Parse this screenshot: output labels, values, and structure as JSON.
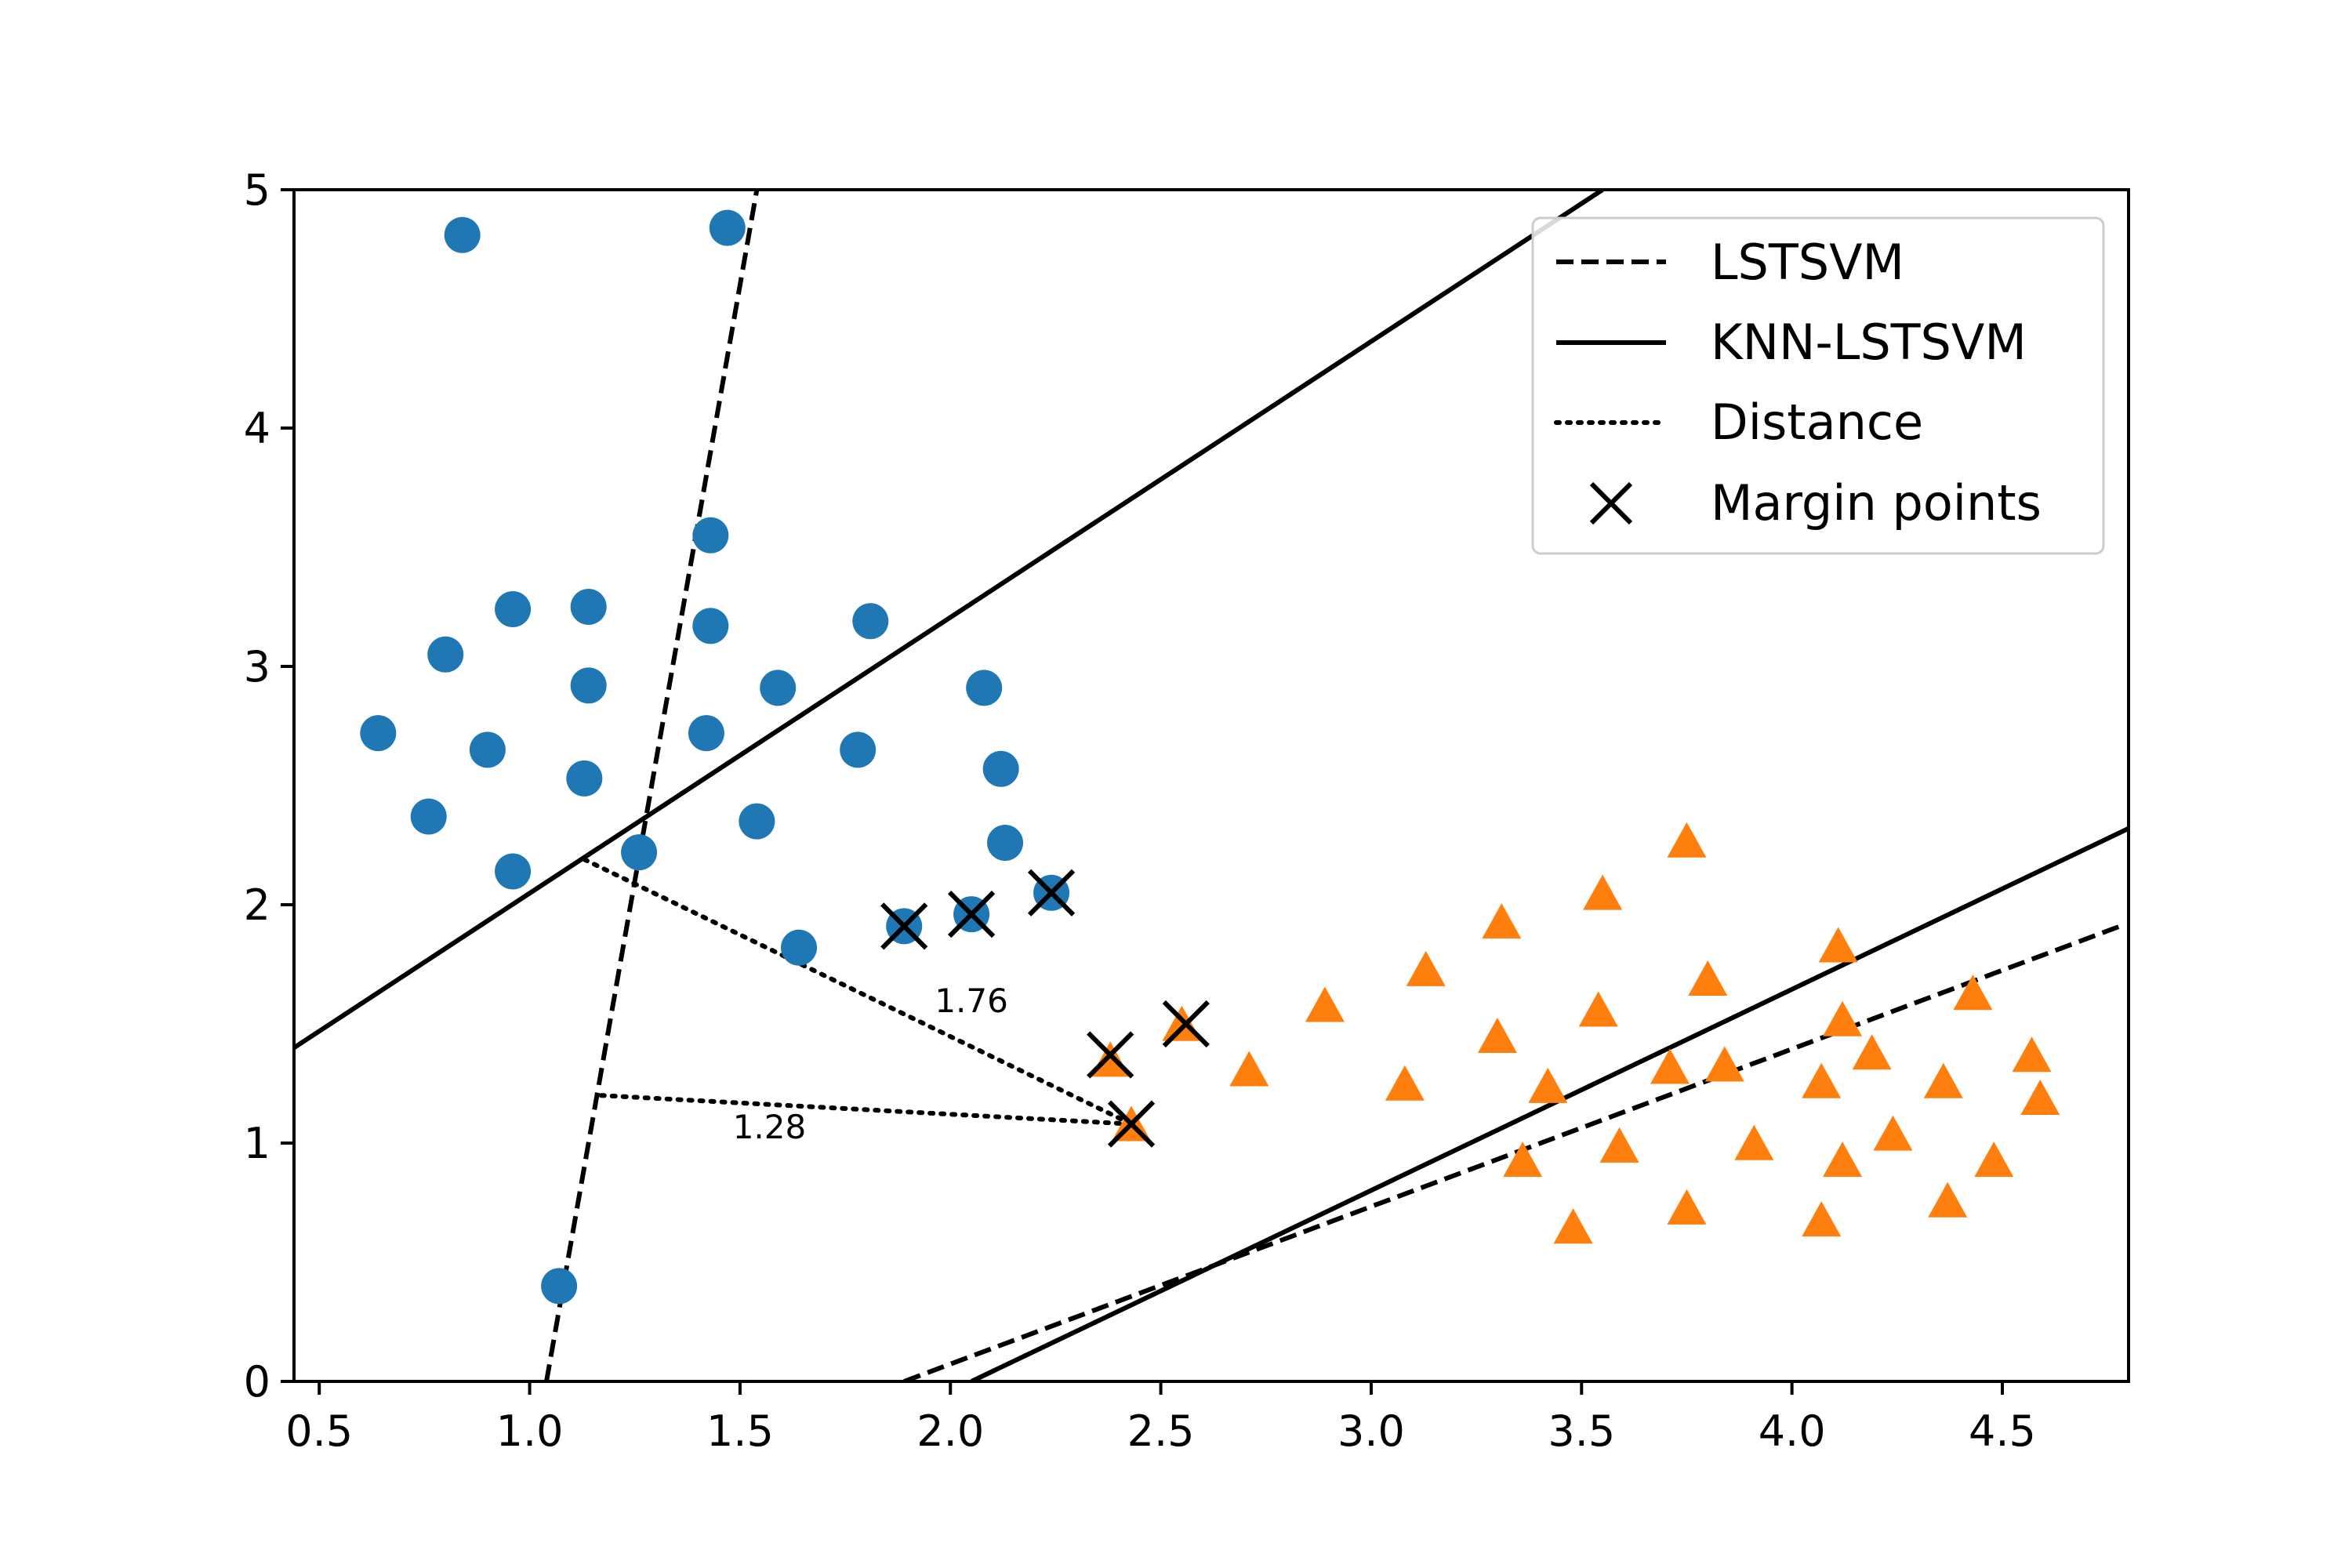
{
  "chart_data": {
    "type": "scatter",
    "xlim": [
      0.44,
      4.8
    ],
    "ylim": [
      0,
      5
    ],
    "xticks": [
      "0.5",
      "1.0",
      "1.5",
      "2.0",
      "2.5",
      "3.0",
      "3.5",
      "4.0",
      "4.5"
    ],
    "yticks": [
      "0",
      "1",
      "2",
      "3",
      "4",
      "5"
    ],
    "grid": false,
    "legend_placement": "top-right",
    "legend": {
      "lstsvm": "LSTSVM",
      "knn": "KNN-LSTSVM",
      "distance": "Distance",
      "margin": "Margin points"
    },
    "colors": {
      "class1": "#1f77b4",
      "class2": "#ff7f0e",
      "lines": "#000000"
    },
    "class1": {
      "marker": "circle",
      "points": [
        [
          0.84,
          4.81
        ],
        [
          1.47,
          4.84
        ],
        [
          1.43,
          3.55
        ],
        [
          0.96,
          3.24
        ],
        [
          1.14,
          3.25
        ],
        [
          1.43,
          3.17
        ],
        [
          1.81,
          3.19
        ],
        [
          0.8,
          3.05
        ],
        [
          1.14,
          2.92
        ],
        [
          1.59,
          2.91
        ],
        [
          2.08,
          2.91
        ],
        [
          0.64,
          2.72
        ],
        [
          1.42,
          2.72
        ],
        [
          0.9,
          2.65
        ],
        [
          1.78,
          2.65
        ],
        [
          1.13,
          2.53
        ],
        [
          2.12,
          2.57
        ],
        [
          0.76,
          2.37
        ],
        [
          1.54,
          2.35
        ],
        [
          2.13,
          2.26
        ],
        [
          1.26,
          2.22
        ],
        [
          0.96,
          2.14
        ],
        [
          1.64,
          1.82
        ],
        [
          1.07,
          0.4
        ],
        [
          1.89,
          1.91
        ],
        [
          2.05,
          1.96
        ],
        [
          2.24,
          2.05
        ]
      ]
    },
    "class2": {
      "marker": "triangle",
      "points": [
        [
          3.75,
          2.26
        ],
        [
          3.55,
          2.04
        ],
        [
          3.31,
          1.92
        ],
        [
          4.11,
          1.82
        ],
        [
          3.13,
          1.72
        ],
        [
          3.8,
          1.68
        ],
        [
          2.89,
          1.57
        ],
        [
          3.54,
          1.55
        ],
        [
          4.43,
          1.62
        ],
        [
          4.12,
          1.51
        ],
        [
          3.3,
          1.44
        ],
        [
          4.19,
          1.37
        ],
        [
          4.57,
          1.36
        ],
        [
          2.71,
          1.3
        ],
        [
          3.71,
          1.31
        ],
        [
          3.84,
          1.32
        ],
        [
          3.08,
          1.24
        ],
        [
          3.42,
          1.23
        ],
        [
          4.07,
          1.25
        ],
        [
          4.36,
          1.25
        ],
        [
          4.59,
          1.18
        ],
        [
          4.24,
          1.03
        ],
        [
          3.59,
          0.98
        ],
        [
          3.91,
          0.99
        ],
        [
          3.36,
          0.92
        ],
        [
          4.12,
          0.92
        ],
        [
          4.48,
          0.92
        ],
        [
          3.75,
          0.72
        ],
        [
          4.37,
          0.75
        ],
        [
          4.07,
          0.67
        ],
        [
          3.48,
          0.64
        ],
        [
          2.38,
          1.34
        ],
        [
          2.55,
          1.49
        ],
        [
          2.43,
          1.07
        ]
      ]
    },
    "margin_points": [
      [
        1.89,
        1.91
      ],
      [
        2.05,
        1.96
      ],
      [
        2.24,
        2.05
      ],
      [
        2.38,
        1.37
      ],
      [
        2.56,
        1.5
      ],
      [
        2.43,
        1.08
      ]
    ],
    "lines": [
      {
        "style": "dashed",
        "legend": "lstsvm",
        "points": [
          [
            1.04,
            0.0
          ],
          [
            1.54,
            5.0
          ]
        ]
      },
      {
        "style": "dashed",
        "legend": "lstsvm",
        "points": [
          [
            1.89,
            0.0
          ],
          [
            4.78,
            1.91
          ]
        ]
      },
      {
        "style": "solid",
        "legend": "knn",
        "points": [
          [
            0.44,
            1.4
          ],
          [
            3.55,
            5.0
          ]
        ]
      },
      {
        "style": "solid",
        "legend": "knn",
        "points": [
          [
            2.05,
            0.0
          ],
          [
            4.8,
            2.32
          ]
        ]
      }
    ],
    "distances": [
      {
        "label": "1.76",
        "from": [
          1.13,
          2.19
        ],
        "to": [
          2.43,
          1.08
        ],
        "label_at": [
          2.05,
          1.55
        ]
      },
      {
        "label": "1.28",
        "from": [
          1.17,
          1.2
        ],
        "to": [
          2.43,
          1.08
        ],
        "label_at": [
          1.57,
          1.02
        ]
      }
    ]
  }
}
